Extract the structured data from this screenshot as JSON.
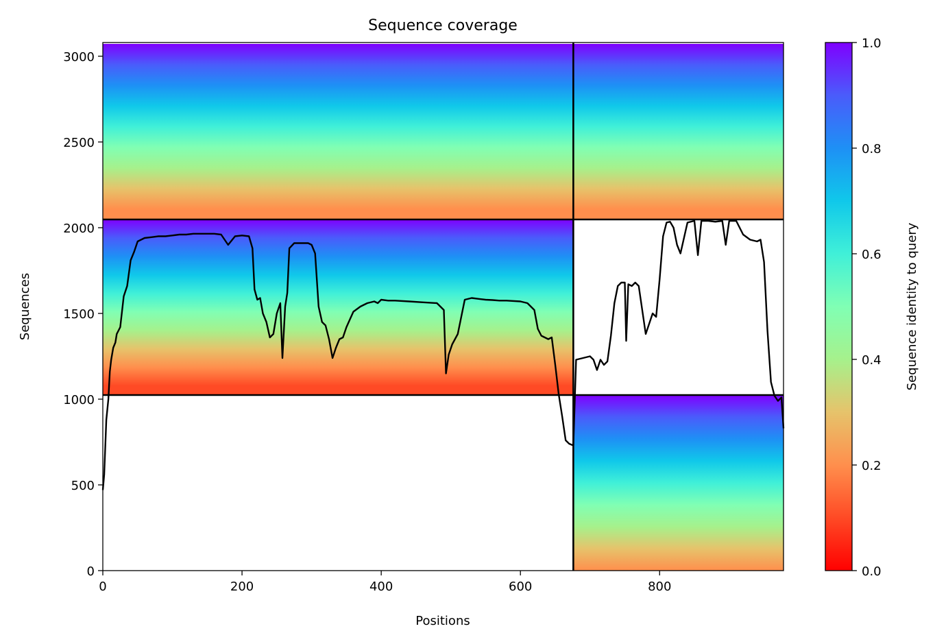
{
  "chart_data": {
    "type": "heatmap",
    "title": "Sequence coverage",
    "xlabel": "Positions",
    "ylabel": "Sequences",
    "xlim": [
      0,
      978
    ],
    "ylim": [
      0,
      3080
    ],
    "x_ticks": [
      "0",
      "200",
      "400",
      "600",
      "800"
    ],
    "x_tick_values": [
      0,
      200,
      400,
      600,
      800
    ],
    "y_ticks": [
      "0",
      "500",
      "1000",
      "1500",
      "2000",
      "2500",
      "3000"
    ],
    "y_tick_values": [
      0,
      500,
      1000,
      1500,
      2000,
      2500,
      3000
    ],
    "colorbar": {
      "label": "Sequence identity to query",
      "range": [
        0.0,
        1.0
      ],
      "ticks": [
        "0.0",
        "0.2",
        "0.4",
        "0.6",
        "0.8",
        "1.0"
      ],
      "tick_values": [
        0.0,
        0.2,
        0.4,
        0.6,
        0.8,
        1.0
      ],
      "colormap": "rainbow_r"
    },
    "chain_boundary_x": [
      676
    ],
    "block_boundary_y": [
      1024,
      2048
    ],
    "blocks": [
      {
        "x": [
          0,
          676
        ],
        "y": [
          2048,
          3072
        ],
        "identity_range": [
          0.15,
          1.0
        ]
      },
      {
        "x": [
          676,
          978
        ],
        "y": [
          2048,
          3072
        ],
        "identity_range": [
          0.15,
          1.0
        ]
      },
      {
        "x": [
          0,
          676
        ],
        "y": [
          1024,
          2048
        ],
        "identity_range": [
          0.05,
          1.0
        ]
      },
      {
        "x": [
          676,
          978
        ],
        "y": [
          0,
          1024
        ],
        "identity_range": [
          0.2,
          1.0
        ]
      }
    ],
    "coverage_line": {
      "x": [
        0,
        2,
        5,
        8,
        10,
        12,
        15,
        18,
        20,
        25,
        30,
        35,
        40,
        45,
        50,
        60,
        70,
        80,
        90,
        100,
        110,
        120,
        130,
        140,
        150,
        160,
        170,
        180,
        190,
        200,
        210,
        215,
        218,
        222,
        226,
        230,
        235,
        240,
        245,
        250,
        255,
        258,
        262,
        265,
        268,
        275,
        285,
        295,
        300,
        305,
        310,
        315,
        320,
        325,
        330,
        335,
        340,
        345,
        350,
        360,
        370,
        380,
        390,
        395,
        400,
        410,
        420,
        440,
        460,
        480,
        490,
        493,
        497,
        502,
        510,
        520,
        530,
        540,
        550,
        560,
        570,
        580,
        600,
        610,
        620,
        625,
        630,
        635,
        640,
        645,
        650,
        655,
        660,
        665,
        670,
        676,
        680,
        690,
        700,
        705,
        710,
        715,
        720,
        725,
        730,
        735,
        740,
        745,
        750,
        752,
        755,
        760,
        765,
        770,
        780,
        790,
        795,
        800,
        805,
        810,
        815,
        820,
        825,
        830,
        840,
        850,
        855,
        860,
        870,
        880,
        890,
        895,
        900,
        910,
        920,
        930,
        940,
        945,
        950,
        955,
        960,
        965,
        970,
        975,
        978
      ],
      "y": [
        470,
        560,
        880,
        1000,
        1160,
        1230,
        1300,
        1330,
        1380,
        1420,
        1600,
        1660,
        1810,
        1860,
        1920,
        1940,
        1945,
        1950,
        1950,
        1955,
        1960,
        1960,
        1965,
        1965,
        1965,
        1965,
        1960,
        1900,
        1950,
        1955,
        1950,
        1880,
        1640,
        1580,
        1590,
        1500,
        1450,
        1360,
        1380,
        1500,
        1560,
        1240,
        1540,
        1620,
        1880,
        1910,
        1910,
        1910,
        1900,
        1850,
        1540,
        1450,
        1430,
        1350,
        1240,
        1300,
        1350,
        1360,
        1420,
        1510,
        1540,
        1560,
        1570,
        1560,
        1580,
        1575,
        1575,
        1570,
        1565,
        1560,
        1520,
        1150,
        1260,
        1320,
        1380,
        1580,
        1590,
        1585,
        1580,
        1578,
        1575,
        1575,
        1570,
        1560,
        1520,
        1410,
        1370,
        1360,
        1350,
        1360,
        1200,
        1030,
        900,
        760,
        740,
        730,
        1230,
        1240,
        1250,
        1230,
        1170,
        1230,
        1200,
        1220,
        1370,
        1560,
        1660,
        1680,
        1680,
        1340,
        1670,
        1660,
        1680,
        1660,
        1380,
        1500,
        1480,
        1700,
        1950,
        2030,
        2035,
        2000,
        1900,
        1850,
        2030,
        2040,
        1840,
        2040,
        2040,
        2035,
        2040,
        1900,
        2040,
        2040,
        1960,
        1930,
        1920,
        1930,
        1800,
        1400,
        1100,
        1020,
        990,
        1010,
        830
      ]
    }
  }
}
